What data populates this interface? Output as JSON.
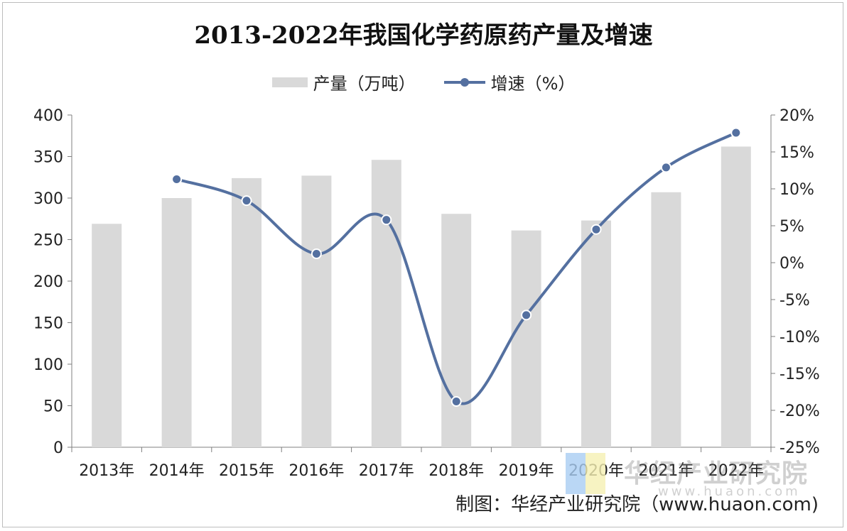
{
  "chart_data": {
    "type": "bar",
    "title": "2013-2022年我国化学药原药产量及增速",
    "categories": [
      "2013年",
      "2014年",
      "2015年",
      "2016年",
      "2017年",
      "2018年",
      "2019年",
      "2020年",
      "2021年",
      "2022年"
    ],
    "series": [
      {
        "name": "产量（万吨）",
        "type": "bar",
        "axis": "left",
        "values": [
          269,
          300,
          324,
          327,
          346,
          281,
          261,
          273,
          307,
          362
        ],
        "color": "#d9d9d9"
      },
      {
        "name": "增速（%）",
        "type": "line",
        "axis": "right",
        "values": [
          null,
          11.3,
          8.4,
          1.2,
          5.8,
          -18.8,
          -7.1,
          4.5,
          12.9,
          17.6
        ],
        "color": "#5470a0"
      }
    ],
    "ylim_left": [
      0,
      400
    ],
    "yticks_left": [
      "0",
      "50",
      "100",
      "150",
      "200",
      "250",
      "300",
      "350",
      "400"
    ],
    "ylim_right": [
      -25,
      20
    ],
    "yticks_right": [
      "-25%",
      "-20%",
      "-15%",
      "-10%",
      "-5%",
      "0%",
      "5%",
      "10%",
      "15%",
      "20%"
    ],
    "legend_position": "top"
  },
  "source": "制图：华经产业研究院（www.huaon.com)",
  "watermark": {
    "name": "华经产业研究院",
    "url": "www.huaon.com"
  }
}
